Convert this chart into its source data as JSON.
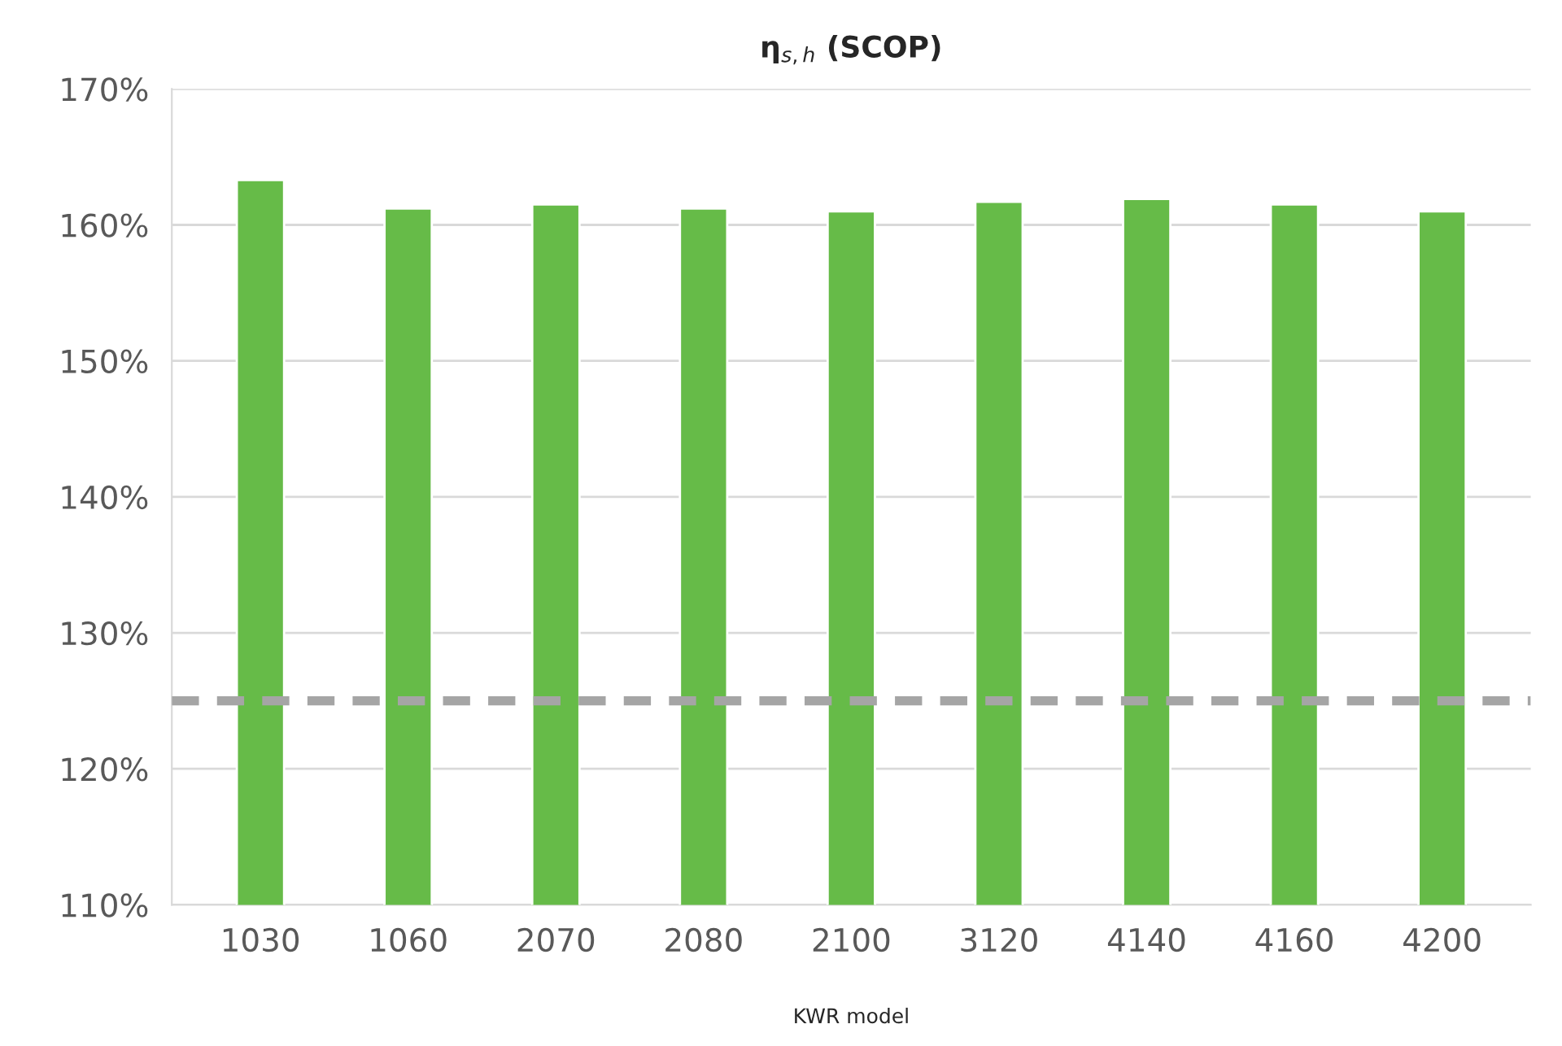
{
  "chart_data": {
    "type": "bar",
    "title": "η$_{s,h}$ (SCOP)",
    "xlabel": "KWR model",
    "categories": [
      "1030",
      "1060",
      "2070",
      "2080",
      "2100",
      "3120",
      "4140",
      "4160",
      "4200"
    ],
    "values": [
      163.3,
      161.2,
      161.5,
      161.2,
      161.0,
      161.7,
      161.9,
      161.5,
      161.0
    ],
    "color": "#66bb48",
    "ylim": [
      110,
      170
    ],
    "yticks": [
      {
        "value": 110,
        "label": "110%"
      },
      {
        "value": 120,
        "label": "120%"
      },
      {
        "value": 130,
        "label": "130%"
      },
      {
        "value": 140,
        "label": "140%"
      },
      {
        "value": 150,
        "label": "150%"
      },
      {
        "value": 160,
        "label": "160%"
      },
      {
        "value": 170,
        "label": "170%"
      }
    ],
    "ref_lines": [
      {
        "axis": "y",
        "value": 125,
        "label": null,
        "color": "#a5a5a5",
        "line_style": "dashed"
      }
    ],
    "grid": "y",
    "legend": false
  }
}
